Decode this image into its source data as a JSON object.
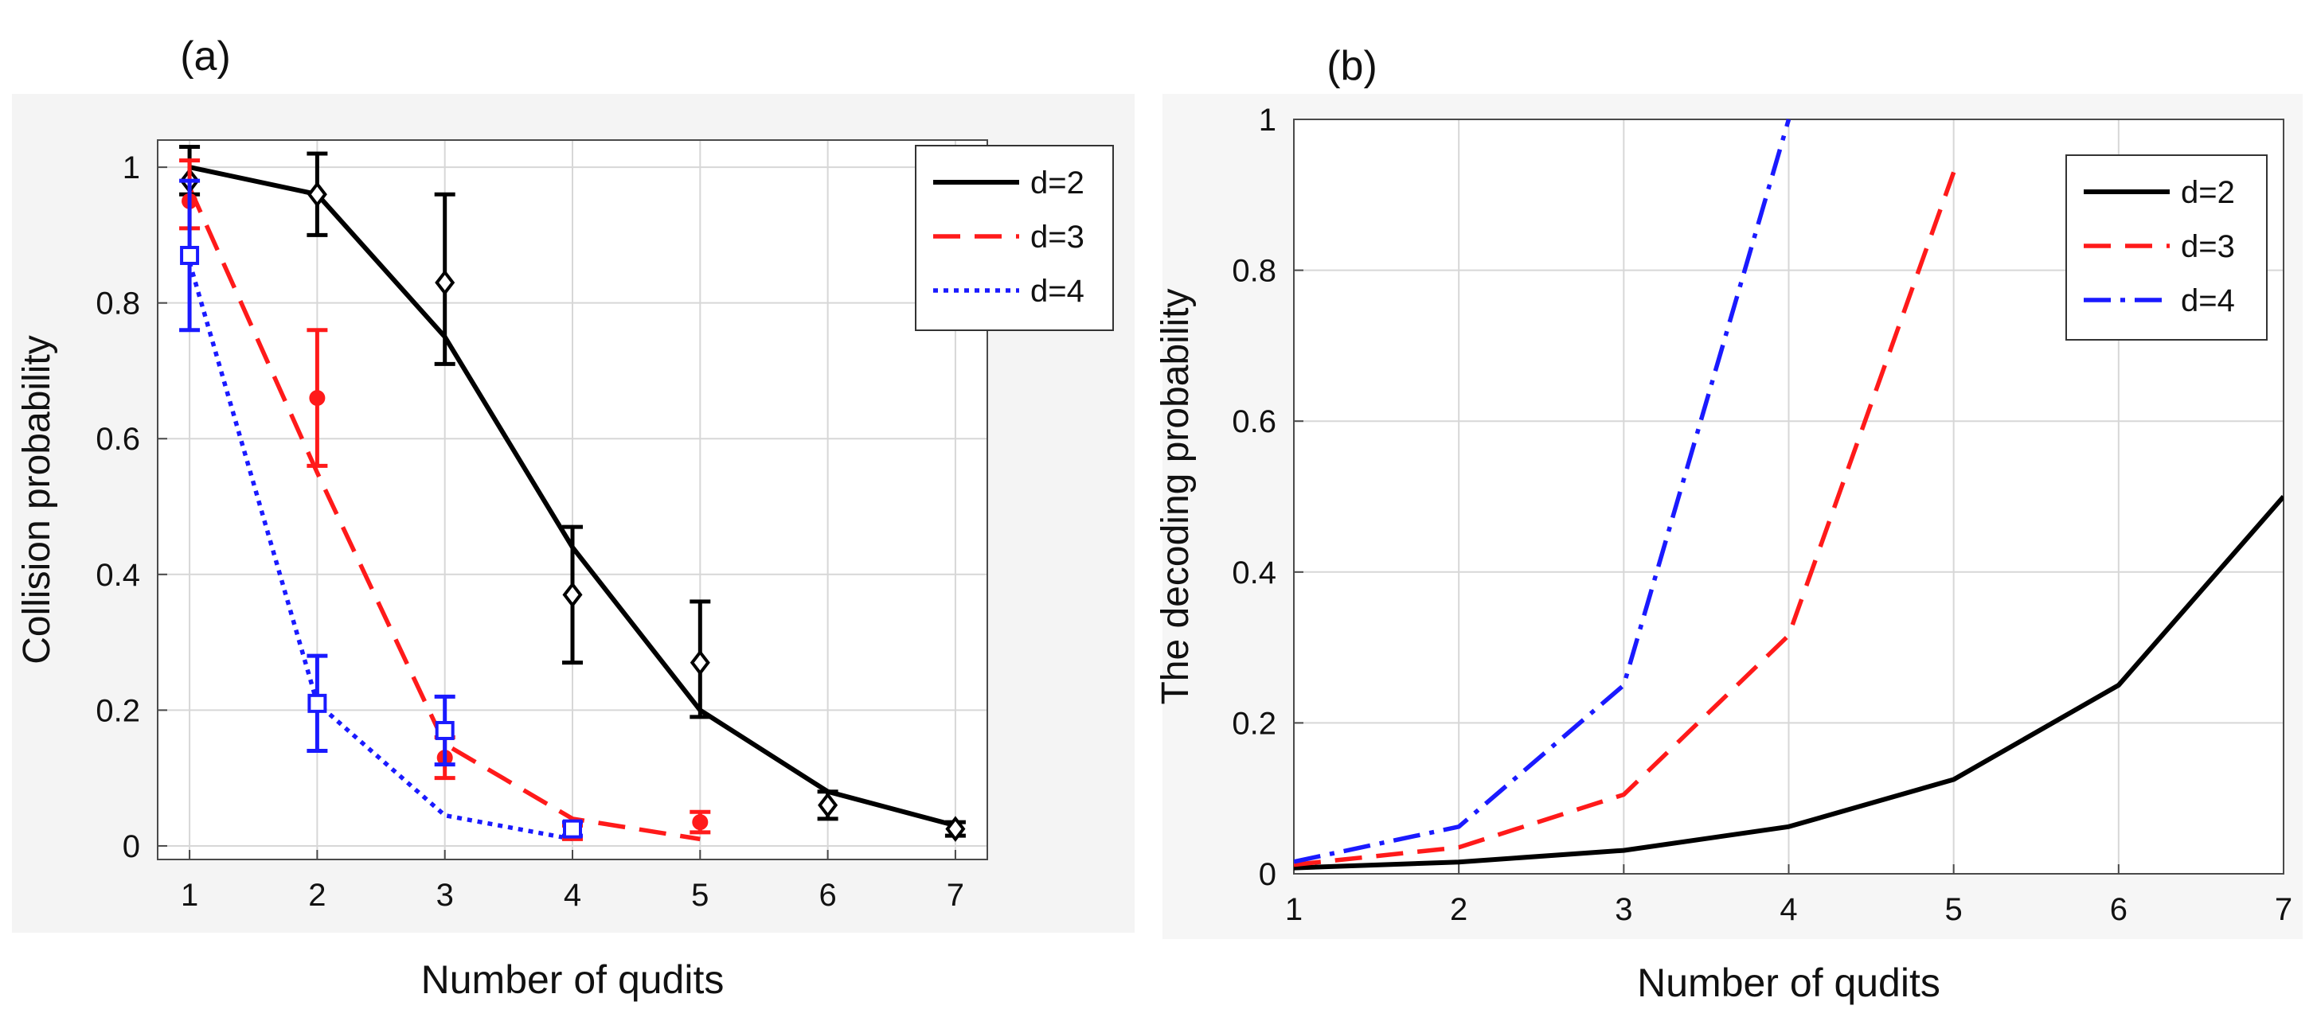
{
  "colors": {
    "d2": "#000000",
    "d3": "#ff1a1a",
    "d4": "#1a1aff",
    "grid": "#d7d7d7",
    "axes_bg_a": "#f4f4f4",
    "axes_bg_b": "#f6f6f6"
  },
  "chart_data": [
    {
      "id": "a",
      "type": "line",
      "panel_label": "(a)",
      "xlabel": "Number of qudits",
      "ylabel": "Collision probability",
      "xlim": [
        1,
        7
      ],
      "ylim": [
        0,
        1
      ],
      "xticks": [
        1,
        2,
        3,
        4,
        5,
        6,
        7
      ],
      "yticks": [
        0,
        0.2,
        0.4,
        0.6,
        0.8,
        1
      ],
      "ytick_labels": [
        "0",
        "0.2",
        "0.4",
        "0.6",
        "0.8",
        "1"
      ],
      "grid": true,
      "legend_position": "top-right",
      "series": [
        {
          "name": "d=2",
          "style": "solid",
          "color_key": "d2",
          "x": [
            1,
            2,
            3,
            4,
            5,
            6,
            7
          ],
          "values": [
            1.0,
            0.96,
            0.75,
            0.44,
            0.2,
            0.08,
            0.03
          ]
        },
        {
          "name": "d=3",
          "style": "dashed",
          "color_key": "d3",
          "x": [
            1,
            2,
            3,
            4,
            5
          ],
          "values": [
            0.97,
            0.55,
            0.15,
            0.04,
            0.01
          ]
        },
        {
          "name": "d=4",
          "style": "dotted",
          "color_key": "d4",
          "x": [
            1,
            2,
            3,
            4
          ],
          "values": [
            0.86,
            0.21,
            0.045,
            0.01
          ]
        }
      ],
      "measurements": [
        {
          "name": "d=2 experiment",
          "marker": "diamond",
          "color_key": "d2",
          "points": [
            {
              "x": 1,
              "y": 0.98,
              "lo": 0.96,
              "hi": 1.03
            },
            {
              "x": 2,
              "y": 0.96,
              "lo": 0.9,
              "hi": 1.02
            },
            {
              "x": 3,
              "y": 0.83,
              "lo": 0.71,
              "hi": 0.96
            },
            {
              "x": 4,
              "y": 0.37,
              "lo": 0.27,
              "hi": 0.47
            },
            {
              "x": 5,
              "y": 0.27,
              "lo": 0.19,
              "hi": 0.36
            },
            {
              "x": 6,
              "y": 0.06,
              "lo": 0.04,
              "hi": 0.08
            },
            {
              "x": 7,
              "y": 0.025,
              "lo": 0.015,
              "hi": 0.035
            }
          ]
        },
        {
          "name": "d=3 experiment",
          "marker": "circle",
          "color_key": "d3",
          "points": [
            {
              "x": 1,
              "y": 0.95,
              "lo": 0.91,
              "hi": 1.01
            },
            {
              "x": 2,
              "y": 0.66,
              "lo": 0.56,
              "hi": 0.76
            },
            {
              "x": 3,
              "y": 0.13,
              "lo": 0.1,
              "hi": 0.16
            },
            {
              "x": 4,
              "y": 0.02,
              "lo": 0.01,
              "hi": 0.03
            },
            {
              "x": 5,
              "y": 0.035,
              "lo": 0.02,
              "hi": 0.05
            }
          ]
        },
        {
          "name": "d=4 experiment",
          "marker": "square",
          "color_key": "d4",
          "points": [
            {
              "x": 1,
              "y": 0.87,
              "lo": 0.76,
              "hi": 0.98
            },
            {
              "x": 2,
              "y": 0.21,
              "lo": 0.14,
              "hi": 0.28
            },
            {
              "x": 3,
              "y": 0.17,
              "lo": 0.12,
              "hi": 0.22
            },
            {
              "x": 4,
              "y": 0.025,
              "lo": 0.015,
              "hi": 0.035
            }
          ]
        }
      ]
    },
    {
      "id": "b",
      "type": "line",
      "panel_label": "(b)",
      "xlabel": "Number of qudits",
      "ylabel": "The decoding probability",
      "xlim": [
        1,
        7
      ],
      "ylim": [
        0,
        1
      ],
      "xticks": [
        1,
        2,
        3,
        4,
        5,
        6,
        7
      ],
      "yticks": [
        0,
        0.2,
        0.4,
        0.6,
        0.8,
        1
      ],
      "ytick_labels": [
        "0",
        "0.2",
        "0.4",
        "0.6",
        "0.8",
        "1"
      ],
      "grid": true,
      "legend_position": "top-right",
      "series": [
        {
          "name": "d=2",
          "style": "solid",
          "color_key": "d2",
          "x": [
            1,
            2,
            3,
            4,
            5,
            6,
            7
          ],
          "values": [
            0.0078,
            0.0156,
            0.031,
            0.0625,
            0.125,
            0.25,
            0.5
          ]
        },
        {
          "name": "d=3",
          "style": "dashed",
          "color_key": "d3",
          "x": [
            1,
            2,
            3,
            4,
            5
          ],
          "values": [
            0.012,
            0.035,
            0.105,
            0.316,
            0.93
          ]
        },
        {
          "name": "d=4",
          "style": "dashdot",
          "color_key": "d4",
          "x": [
            1,
            2,
            3,
            4
          ],
          "values": [
            0.016,
            0.0625,
            0.25,
            1.0
          ]
        }
      ],
      "measurements": []
    }
  ]
}
